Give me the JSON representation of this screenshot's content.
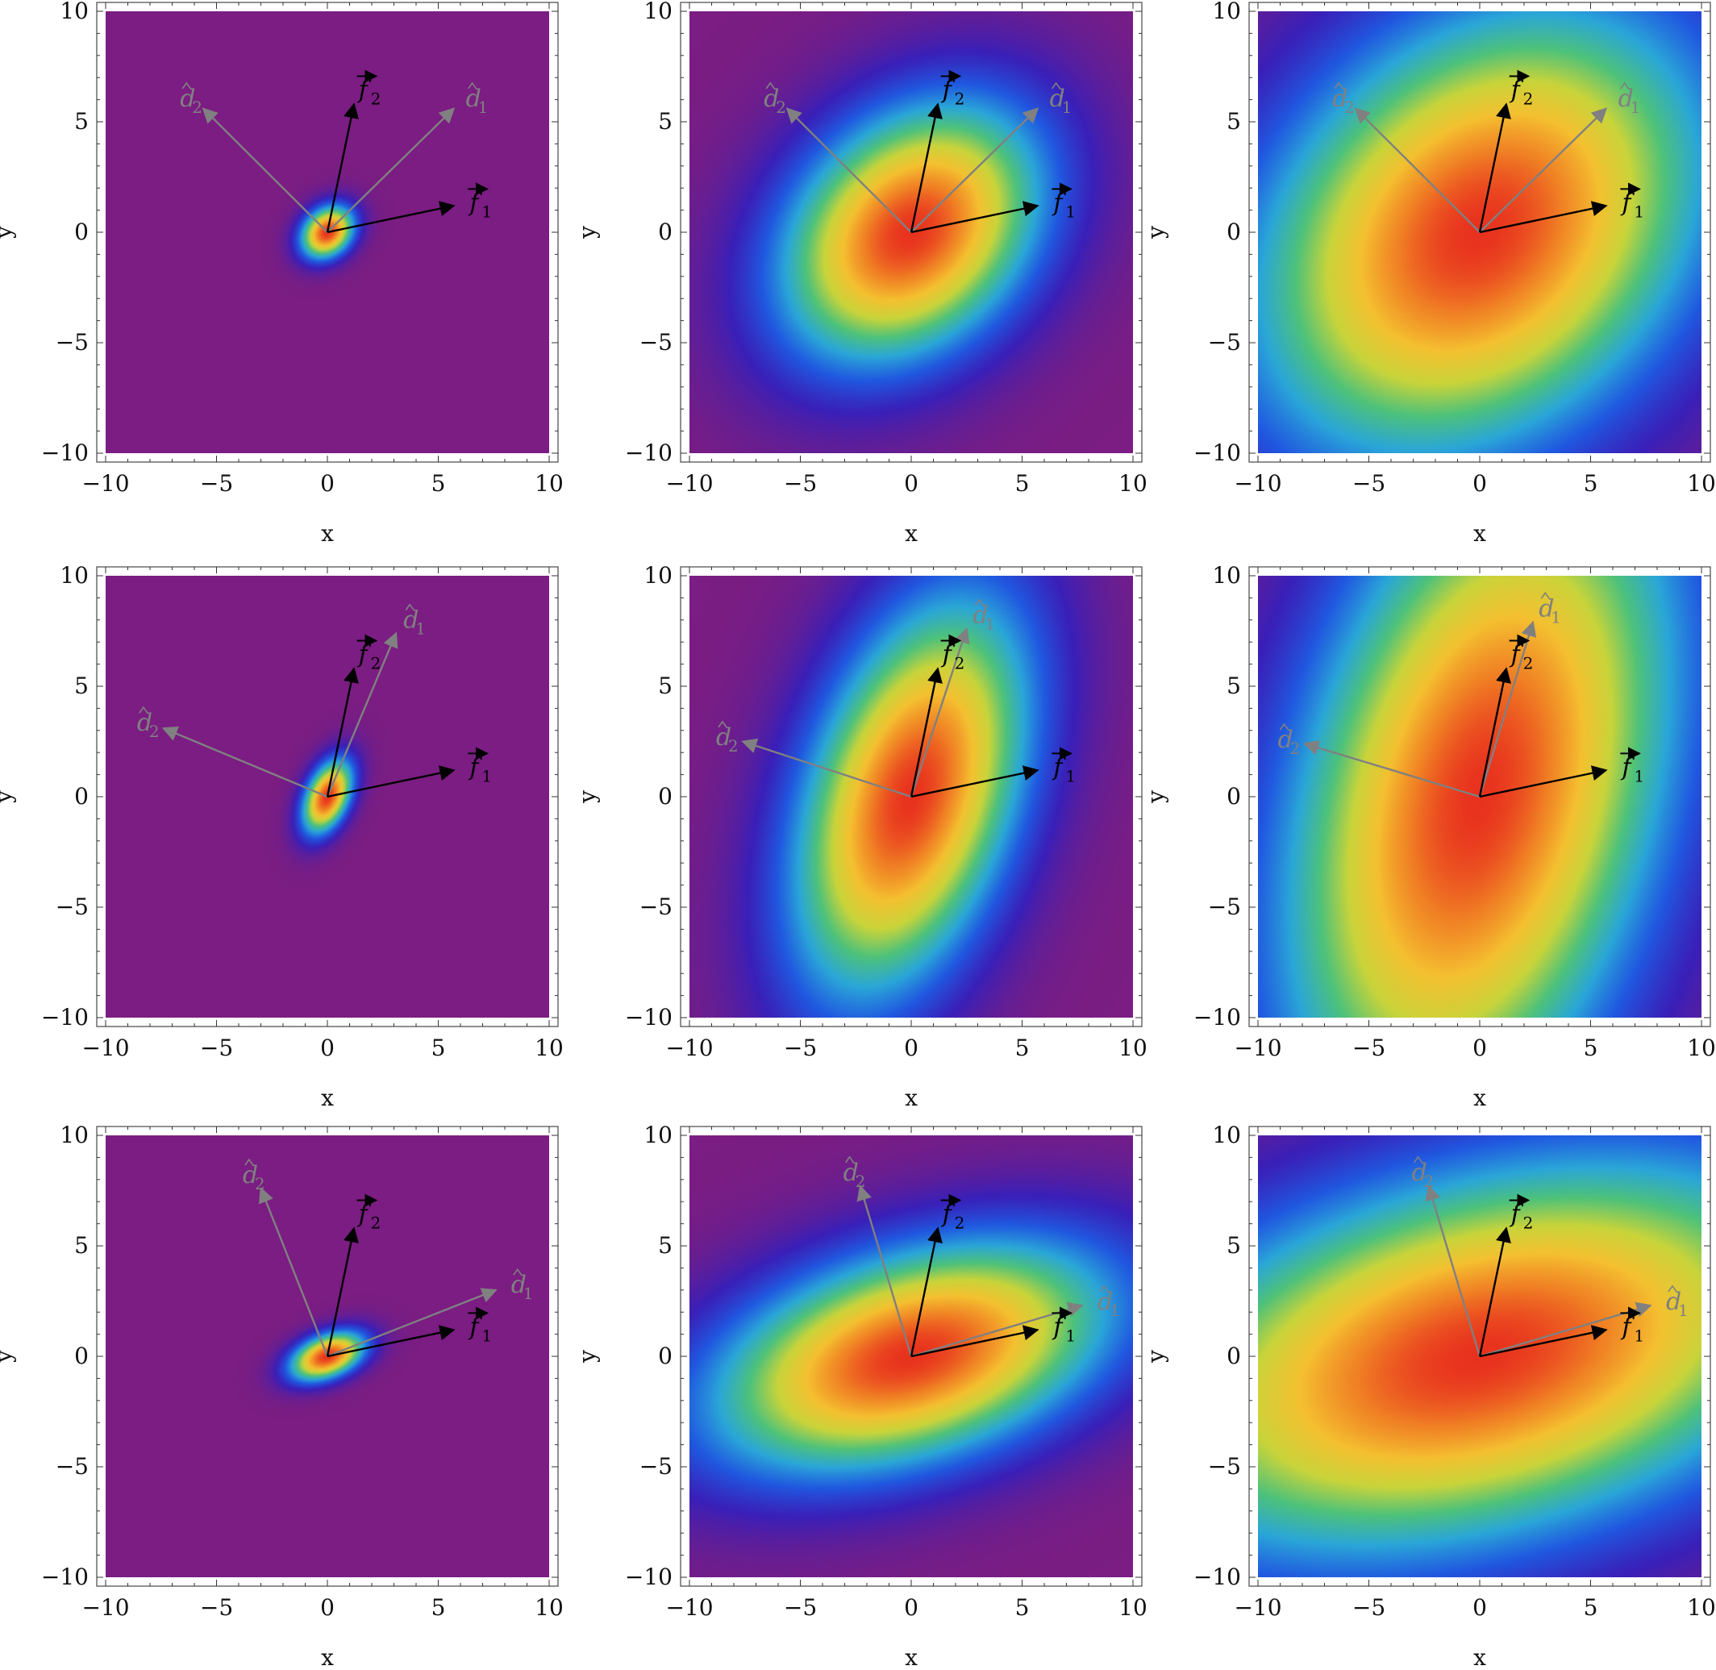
{
  "colors": {
    "plot_background": "#7b1d82",
    "colormap": [
      "#7b1d82",
      "#3a1fb8",
      "#2058e0",
      "#2aa6d8",
      "#4ec27a",
      "#c9d43a",
      "#f4c030",
      "#f08024",
      "#e8321e"
    ],
    "vector_f": "#000000",
    "vector_d": "#808080",
    "frame": "#555555"
  },
  "chart_data": [
    {
      "type": "heatmap",
      "panel": "row1-col1",
      "xlabel": "x",
      "ylabel": "y",
      "xlim": [
        -10,
        10
      ],
      "ylim": [
        -10,
        10
      ],
      "xticks": [
        -10,
        -5,
        0,
        5,
        10
      ],
      "yticks": [
        -10,
        -5,
        0,
        5,
        10
      ],
      "xticklabels": [
        "−10",
        "−5",
        "0",
        "5",
        "10"
      ],
      "yticklabels": [
        "−10",
        "−5",
        "0",
        "5",
        "10"
      ],
      "vectors": {
        "f1": [
          5.7,
          1.2
        ],
        "f2": [
          1.2,
          5.8
        ],
        "d1": [
          5.7,
          5.6
        ],
        "d2": [
          -5.6,
          5.6
        ]
      },
      "vector_labels": {
        "f1": "f",
        "f1_sub": "1",
        "f2": "f",
        "f2_sub": "2",
        "d1": "d",
        "d1_sub": "1",
        "d2": "d",
        "d2_sub": "2"
      },
      "ellipse": {
        "center": [
          0,
          0
        ],
        "angle_deg": 45,
        "sigma_major": 0.9,
        "sigma_minor": 0.7
      }
    },
    {
      "type": "heatmap",
      "panel": "row1-col2",
      "xlabel": "x",
      "ylabel": "y",
      "xlim": [
        -10,
        10
      ],
      "ylim": [
        -10,
        10
      ],
      "xticks": [
        -10,
        -5,
        0,
        5,
        10
      ],
      "yticks": [
        -10,
        -5,
        0,
        5,
        10
      ],
      "xticklabels": [
        "−10",
        "−5",
        "0",
        "5",
        "10"
      ],
      "yticklabels": [
        "−10",
        "−5",
        "0",
        "5",
        "10"
      ],
      "vectors": {
        "f1": [
          5.7,
          1.2
        ],
        "f2": [
          1.2,
          5.8
        ],
        "d1": [
          5.7,
          5.6
        ],
        "d2": [
          -5.6,
          5.6
        ]
      },
      "vector_labels": {
        "f1": "f",
        "f1_sub": "1",
        "f2": "f",
        "f2_sub": "2",
        "d1": "d",
        "d1_sub": "1",
        "d2": "d",
        "d2_sub": "2"
      },
      "ellipse": {
        "center": [
          0,
          0
        ],
        "angle_deg": 45,
        "sigma_major": 4.6,
        "sigma_minor": 3.4
      }
    },
    {
      "type": "heatmap",
      "panel": "row1-col3",
      "xlabel": "x",
      "ylabel": "y",
      "xlim": [
        -10,
        10
      ],
      "ylim": [
        -10,
        10
      ],
      "xticks": [
        -10,
        -5,
        0,
        5,
        10
      ],
      "yticks": [
        -10,
        -5,
        0,
        5,
        10
      ],
      "xticklabels": [
        "−10",
        "−5",
        "0",
        "5",
        "10"
      ],
      "yticklabels": [
        "−10",
        "−5",
        "0",
        "5",
        "10"
      ],
      "vectors": {
        "f1": [
          5.7,
          1.2
        ],
        "f2": [
          1.2,
          5.8
        ],
        "d1": [
          5.7,
          5.6
        ],
        "d2": [
          -5.6,
          5.6
        ]
      },
      "vector_labels": {
        "f1": "f",
        "f1_sub": "1",
        "f2": "f",
        "f2_sub": "2",
        "d1": "d",
        "d1_sub": "1",
        "d2": "d",
        "d2_sub": "2"
      },
      "ellipse": {
        "center": [
          0,
          0
        ],
        "angle_deg": 45,
        "sigma_major": 8.0,
        "sigma_minor": 6.0
      }
    },
    {
      "type": "heatmap",
      "panel": "row2-col1",
      "xlabel": "x",
      "ylabel": "y",
      "xlim": [
        -10,
        10
      ],
      "ylim": [
        -10,
        10
      ],
      "xticks": [
        -10,
        -5,
        0,
        5,
        10
      ],
      "yticks": [
        -10,
        -5,
        0,
        5,
        10
      ],
      "xticklabels": [
        "−10",
        "−5",
        "0",
        "5",
        "10"
      ],
      "yticklabels": [
        "−10",
        "−5",
        "0",
        "5",
        "10"
      ],
      "vectors": {
        "f1": [
          5.7,
          1.2
        ],
        "f2": [
          1.2,
          5.8
        ],
        "d1": [
          3.1,
          7.4
        ],
        "d2": [
          -7.4,
          3.1
        ]
      },
      "vector_labels": {
        "f1": "f",
        "f1_sub": "1",
        "f2": "f",
        "f2_sub": "2",
        "d1": "d",
        "d1_sub": "1",
        "d2": "d",
        "d2_sub": "2"
      },
      "ellipse": {
        "center": [
          0,
          0
        ],
        "angle_deg": 67,
        "sigma_major": 1.2,
        "sigma_minor": 0.65
      }
    },
    {
      "type": "heatmap",
      "panel": "row2-col2",
      "xlabel": "x",
      "ylabel": "y",
      "xlim": [
        -10,
        10
      ],
      "ylim": [
        -10,
        10
      ],
      "xticks": [
        -10,
        -5,
        0,
        5,
        10
      ],
      "yticks": [
        -10,
        -5,
        0,
        5,
        10
      ],
      "xticklabels": [
        "−10",
        "−5",
        "0",
        "5",
        "10"
      ],
      "yticklabels": [
        "−10",
        "−5",
        "0",
        "5",
        "10"
      ],
      "vectors": {
        "f1": [
          5.7,
          1.2
        ],
        "f2": [
          1.2,
          5.8
        ],
        "d1": [
          2.5,
          7.6
        ],
        "d2": [
          -7.6,
          2.5
        ]
      },
      "vector_labels": {
        "f1": "f",
        "f1_sub": "1",
        "f2": "f",
        "f2_sub": "2",
        "d1": "d",
        "d1_sub": "1",
        "d2": "d",
        "d2_sub": "2"
      },
      "ellipse": {
        "center": [
          0,
          0
        ],
        "angle_deg": 72,
        "sigma_major": 6.4,
        "sigma_minor": 3.2
      }
    },
    {
      "type": "heatmap",
      "panel": "row2-col3",
      "xlabel": "x",
      "ylabel": "y",
      "xlim": [
        -10,
        10
      ],
      "ylim": [
        -10,
        10
      ],
      "xticks": [
        -10,
        -5,
        0,
        5,
        10
      ],
      "yticks": [
        -10,
        -5,
        0,
        5,
        10
      ],
      "xticklabels": [
        "−10",
        "−5",
        "0",
        "5",
        "10"
      ],
      "yticklabels": [
        "−10",
        "−5",
        "0",
        "5",
        "10"
      ],
      "vectors": {
        "f1": [
          5.7,
          1.2
        ],
        "f2": [
          1.2,
          5.8
        ],
        "d1": [
          2.4,
          7.9
        ],
        "d2": [
          -7.9,
          2.4
        ]
      },
      "vector_labels": {
        "f1": "f",
        "f1_sub": "1",
        "f2": "f",
        "f2_sub": "2",
        "d1": "d",
        "d1_sub": "1",
        "d2": "d",
        "d2_sub": "2"
      },
      "ellipse": {
        "center": [
          0,
          0
        ],
        "angle_deg": 75,
        "sigma_major": 11.0,
        "sigma_minor": 5.6
      }
    },
    {
      "type": "heatmap",
      "panel": "row3-col1",
      "xlabel": "x",
      "ylabel": "y",
      "xlim": [
        -10,
        10
      ],
      "ylim": [
        -10,
        10
      ],
      "xticks": [
        -10,
        -5,
        0,
        5,
        10
      ],
      "yticks": [
        -10,
        -5,
        0,
        5,
        10
      ],
      "xticklabels": [
        "−10",
        "−5",
        "0",
        "5",
        "10"
      ],
      "yticklabels": [
        "−10",
        "−5",
        "0",
        "5",
        "10"
      ],
      "vectors": {
        "f1": [
          5.7,
          1.2
        ],
        "f2": [
          1.2,
          5.8
        ],
        "d1": [
          7.6,
          3.0
        ],
        "d2": [
          -3.0,
          7.6
        ]
      },
      "vector_labels": {
        "f1": "f",
        "f1_sub": "1",
        "f2": "f",
        "f2_sub": "2",
        "d1": "d",
        "d1_sub": "1",
        "d2": "d",
        "d2_sub": "2"
      },
      "ellipse": {
        "center": [
          0,
          0
        ],
        "angle_deg": 22,
        "sigma_major": 1.2,
        "sigma_minor": 0.65
      }
    },
    {
      "type": "heatmap",
      "panel": "row3-col2",
      "xlabel": "x",
      "ylabel": "y",
      "xlim": [
        -10,
        10
      ],
      "ylim": [
        -10,
        10
      ],
      "xticks": [
        -10,
        -5,
        0,
        5,
        10
      ],
      "yticks": [
        -10,
        -5,
        0,
        5,
        10
      ],
      "xticklabels": [
        "−10",
        "−5",
        "0",
        "5",
        "10"
      ],
      "yticklabels": [
        "−10",
        "−5",
        "0",
        "5",
        "10"
      ],
      "vectors": {
        "f1": [
          5.7,
          1.2
        ],
        "f2": [
          1.2,
          5.8
        ],
        "d1": [
          7.7,
          2.3
        ],
        "d2": [
          -2.3,
          7.7
        ]
      },
      "vector_labels": {
        "f1": "f",
        "f1_sub": "1",
        "f2": "f",
        "f2_sub": "2",
        "d1": "d",
        "d1_sub": "1",
        "d2": "d",
        "d2_sub": "2"
      },
      "ellipse": {
        "center": [
          0,
          0
        ],
        "angle_deg": 17,
        "sigma_major": 6.4,
        "sigma_minor": 3.2
      }
    },
    {
      "type": "heatmap",
      "panel": "row3-col3",
      "xlabel": "x",
      "ylabel": "y",
      "xlim": [
        -10,
        10
      ],
      "ylim": [
        -10,
        10
      ],
      "xticks": [
        -10,
        -5,
        0,
        5,
        10
      ],
      "yticks": [
        -10,
        -5,
        0,
        5,
        10
      ],
      "xticklabels": [
        "−10",
        "−5",
        "0",
        "5",
        "10"
      ],
      "yticklabels": [
        "−10",
        "−5",
        "0",
        "5",
        "10"
      ],
      "vectors": {
        "f1": [
          5.7,
          1.2
        ],
        "f2": [
          1.2,
          5.8
        ],
        "d1": [
          7.7,
          2.3
        ],
        "d2": [
          -2.3,
          7.7
        ]
      },
      "vector_labels": {
        "f1": "f",
        "f1_sub": "1",
        "f2": "f",
        "f2_sub": "2",
        "d1": "d",
        "d1_sub": "1",
        "d2": "d",
        "d2_sub": "2"
      },
      "ellipse": {
        "center": [
          0,
          0
        ],
        "angle_deg": 15,
        "sigma_major": 11.0,
        "sigma_minor": 5.6
      }
    }
  ]
}
